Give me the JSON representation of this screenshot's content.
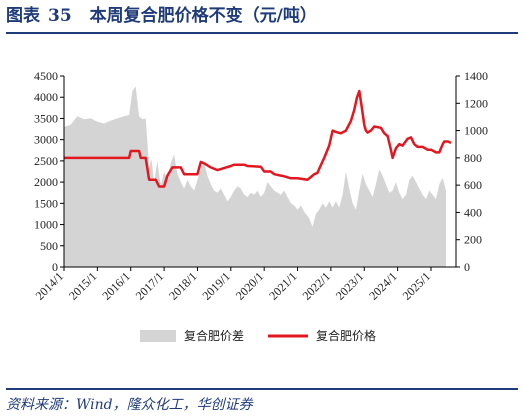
{
  "header": {
    "label": "图表",
    "number": "35",
    "text": "本周复合肥价格不变（元/吨）"
  },
  "footer": {
    "source": "资料来源：Wind，隆众化工，华创证券"
  },
  "colors": {
    "area": "#d4d4d4",
    "line": "#e3171f",
    "header": "#1f3b7a"
  },
  "chart_data": {
    "type": "line",
    "x_tick_labels": [
      "2014/1",
      "2015/1",
      "2016/1",
      "2017/1",
      "2018/1",
      "2019/1",
      "2020/1",
      "2021/1",
      "2022/1",
      "2023/1",
      "2024/1",
      "2025/1"
    ],
    "y_left": {
      "range": [
        0,
        4500
      ],
      "ticks": [
        0,
        500,
        1000,
        1500,
        2000,
        2500,
        3000,
        3500,
        4000,
        4500
      ]
    },
    "y_right": {
      "range": [
        0,
        1400
      ],
      "ticks": [
        0,
        200,
        400,
        600,
        800,
        1000,
        1200,
        1400
      ]
    },
    "grid": false,
    "legend_position": "bottom",
    "series": [
      {
        "name": "复合肥价差",
        "kind": "area",
        "axis": "left",
        "points": [
          [
            2014.0,
            3300
          ],
          [
            2014.2,
            3350
          ],
          [
            2014.4,
            3550
          ],
          [
            2014.6,
            3480
          ],
          [
            2014.8,
            3500
          ],
          [
            2015.0,
            3420
          ],
          [
            2015.2,
            3380
          ],
          [
            2015.4,
            3450
          ],
          [
            2015.6,
            3500
          ],
          [
            2015.8,
            3550
          ],
          [
            2015.95,
            3580
          ],
          [
            2016.05,
            4150
          ],
          [
            2016.15,
            4250
          ],
          [
            2016.25,
            3550
          ],
          [
            2016.35,
            3480
          ],
          [
            2016.45,
            3500
          ],
          [
            2016.55,
            2350
          ],
          [
            2016.62,
            2550
          ],
          [
            2016.7,
            2000
          ],
          [
            2016.8,
            2500
          ],
          [
            2016.9,
            1900
          ],
          [
            2017.0,
            2250
          ],
          [
            2017.1,
            2050
          ],
          [
            2017.2,
            2450
          ],
          [
            2017.3,
            2650
          ],
          [
            2017.4,
            2200
          ],
          [
            2017.5,
            2000
          ],
          [
            2017.6,
            1850
          ],
          [
            2017.7,
            2050
          ],
          [
            2017.8,
            1900
          ],
          [
            2017.9,
            1800
          ],
          [
            2018.0,
            2050
          ],
          [
            2018.1,
            2350
          ],
          [
            2018.2,
            2450
          ],
          [
            2018.3,
            2150
          ],
          [
            2018.4,
            1950
          ],
          [
            2018.5,
            1800
          ],
          [
            2018.6,
            1750
          ],
          [
            2018.7,
            1850
          ],
          [
            2018.8,
            1700
          ],
          [
            2018.9,
            1550
          ],
          [
            2019.0,
            1650
          ],
          [
            2019.1,
            1800
          ],
          [
            2019.2,
            1900
          ],
          [
            2019.3,
            1850
          ],
          [
            2019.4,
            1700
          ],
          [
            2019.5,
            1650
          ],
          [
            2019.6,
            1750
          ],
          [
            2019.7,
            1700
          ],
          [
            2019.8,
            1800
          ],
          [
            2019.9,
            1650
          ],
          [
            2020.0,
            1750
          ],
          [
            2020.1,
            2000
          ],
          [
            2020.2,
            1900
          ],
          [
            2020.3,
            1800
          ],
          [
            2020.4,
            1750
          ],
          [
            2020.5,
            1700
          ],
          [
            2020.6,
            1800
          ],
          [
            2020.7,
            1650
          ],
          [
            2020.8,
            1500
          ],
          [
            2020.9,
            1450
          ],
          [
            2021.0,
            1350
          ],
          [
            2021.1,
            1450
          ],
          [
            2021.2,
            1300
          ],
          [
            2021.35,
            1150
          ],
          [
            2021.45,
            950
          ],
          [
            2021.55,
            1250
          ],
          [
            2021.65,
            1350
          ],
          [
            2021.75,
            1500
          ],
          [
            2021.85,
            1400
          ],
          [
            2021.95,
            1550
          ],
          [
            2022.05,
            1400
          ],
          [
            2022.15,
            1550
          ],
          [
            2022.25,
            1400
          ],
          [
            2022.35,
            1700
          ],
          [
            2022.45,
            2250
          ],
          [
            2022.55,
            1850
          ],
          [
            2022.65,
            1500
          ],
          [
            2022.75,
            1350
          ],
          [
            2022.85,
            1800
          ],
          [
            2022.95,
            2200
          ],
          [
            2023.05,
            1950
          ],
          [
            2023.15,
            1800
          ],
          [
            2023.25,
            1650
          ],
          [
            2023.35,
            1950
          ],
          [
            2023.45,
            2300
          ],
          [
            2023.55,
            2150
          ],
          [
            2023.65,
            1950
          ],
          [
            2023.75,
            1750
          ],
          [
            2023.85,
            1800
          ],
          [
            2023.95,
            2000
          ],
          [
            2024.05,
            1750
          ],
          [
            2024.15,
            1600
          ],
          [
            2024.25,
            1700
          ],
          [
            2024.35,
            2050
          ],
          [
            2024.45,
            2150
          ],
          [
            2024.55,
            2000
          ],
          [
            2024.65,
            1850
          ],
          [
            2024.75,
            1700
          ],
          [
            2024.85,
            1600
          ],
          [
            2024.95,
            1800
          ],
          [
            2025.05,
            1700
          ],
          [
            2025.15,
            1600
          ],
          [
            2025.25,
            1950
          ],
          [
            2025.35,
            2100
          ],
          [
            2025.45,
            1800
          ]
        ]
      },
      {
        "name": "复合肥价格",
        "kind": "line",
        "axis": "right",
        "points": [
          [
            2014.0,
            800
          ],
          [
            2015.95,
            800
          ],
          [
            2016.0,
            850
          ],
          [
            2016.25,
            850
          ],
          [
            2016.3,
            800
          ],
          [
            2016.45,
            800
          ],
          [
            2016.55,
            640
          ],
          [
            2016.75,
            640
          ],
          [
            2016.85,
            590
          ],
          [
            2017.0,
            590
          ],
          [
            2017.1,
            670
          ],
          [
            2017.25,
            730
          ],
          [
            2017.5,
            730
          ],
          [
            2017.6,
            680
          ],
          [
            2018.0,
            680
          ],
          [
            2018.1,
            770
          ],
          [
            2018.2,
            760
          ],
          [
            2018.4,
            730
          ],
          [
            2018.6,
            710
          ],
          [
            2018.8,
            725
          ],
          [
            2019.0,
            740
          ],
          [
            2019.1,
            750
          ],
          [
            2019.4,
            750
          ],
          [
            2019.5,
            740
          ],
          [
            2019.9,
            735
          ],
          [
            2020.0,
            700
          ],
          [
            2020.2,
            700
          ],
          [
            2020.3,
            680
          ],
          [
            2020.5,
            670
          ],
          [
            2020.6,
            665
          ],
          [
            2020.8,
            650
          ],
          [
            2021.0,
            650
          ],
          [
            2021.15,
            645
          ],
          [
            2021.3,
            640
          ],
          [
            2021.4,
            660
          ],
          [
            2021.5,
            680
          ],
          [
            2021.6,
            690
          ],
          [
            2021.65,
            720
          ],
          [
            2021.8,
            800
          ],
          [
            2021.95,
            890
          ],
          [
            2022.05,
            1000
          ],
          [
            2022.15,
            990
          ],
          [
            2022.3,
            980
          ],
          [
            2022.45,
            1000
          ],
          [
            2022.6,
            1070
          ],
          [
            2022.7,
            1150
          ],
          [
            2022.78,
            1240
          ],
          [
            2022.85,
            1290
          ],
          [
            2022.92,
            1180
          ],
          [
            2023.0,
            1040
          ],
          [
            2023.05,
            1000
          ],
          [
            2023.1,
            985
          ],
          [
            2023.2,
            1000
          ],
          [
            2023.3,
            1030
          ],
          [
            2023.5,
            1020
          ],
          [
            2023.6,
            980
          ],
          [
            2023.7,
            960
          ],
          [
            2023.8,
            860
          ],
          [
            2023.85,
            800
          ],
          [
            2023.95,
            870
          ],
          [
            2024.05,
            900
          ],
          [
            2024.15,
            890
          ],
          [
            2024.3,
            940
          ],
          [
            2024.4,
            950
          ],
          [
            2024.5,
            900
          ],
          [
            2024.6,
            880
          ],
          [
            2024.75,
            880
          ],
          [
            2024.9,
            860
          ],
          [
            2025.0,
            860
          ],
          [
            2025.15,
            840
          ],
          [
            2025.25,
            840
          ],
          [
            2025.35,
            900
          ],
          [
            2025.4,
            920
          ],
          [
            2025.5,
            920
          ],
          [
            2025.6,
            910
          ]
        ]
      }
    ]
  }
}
